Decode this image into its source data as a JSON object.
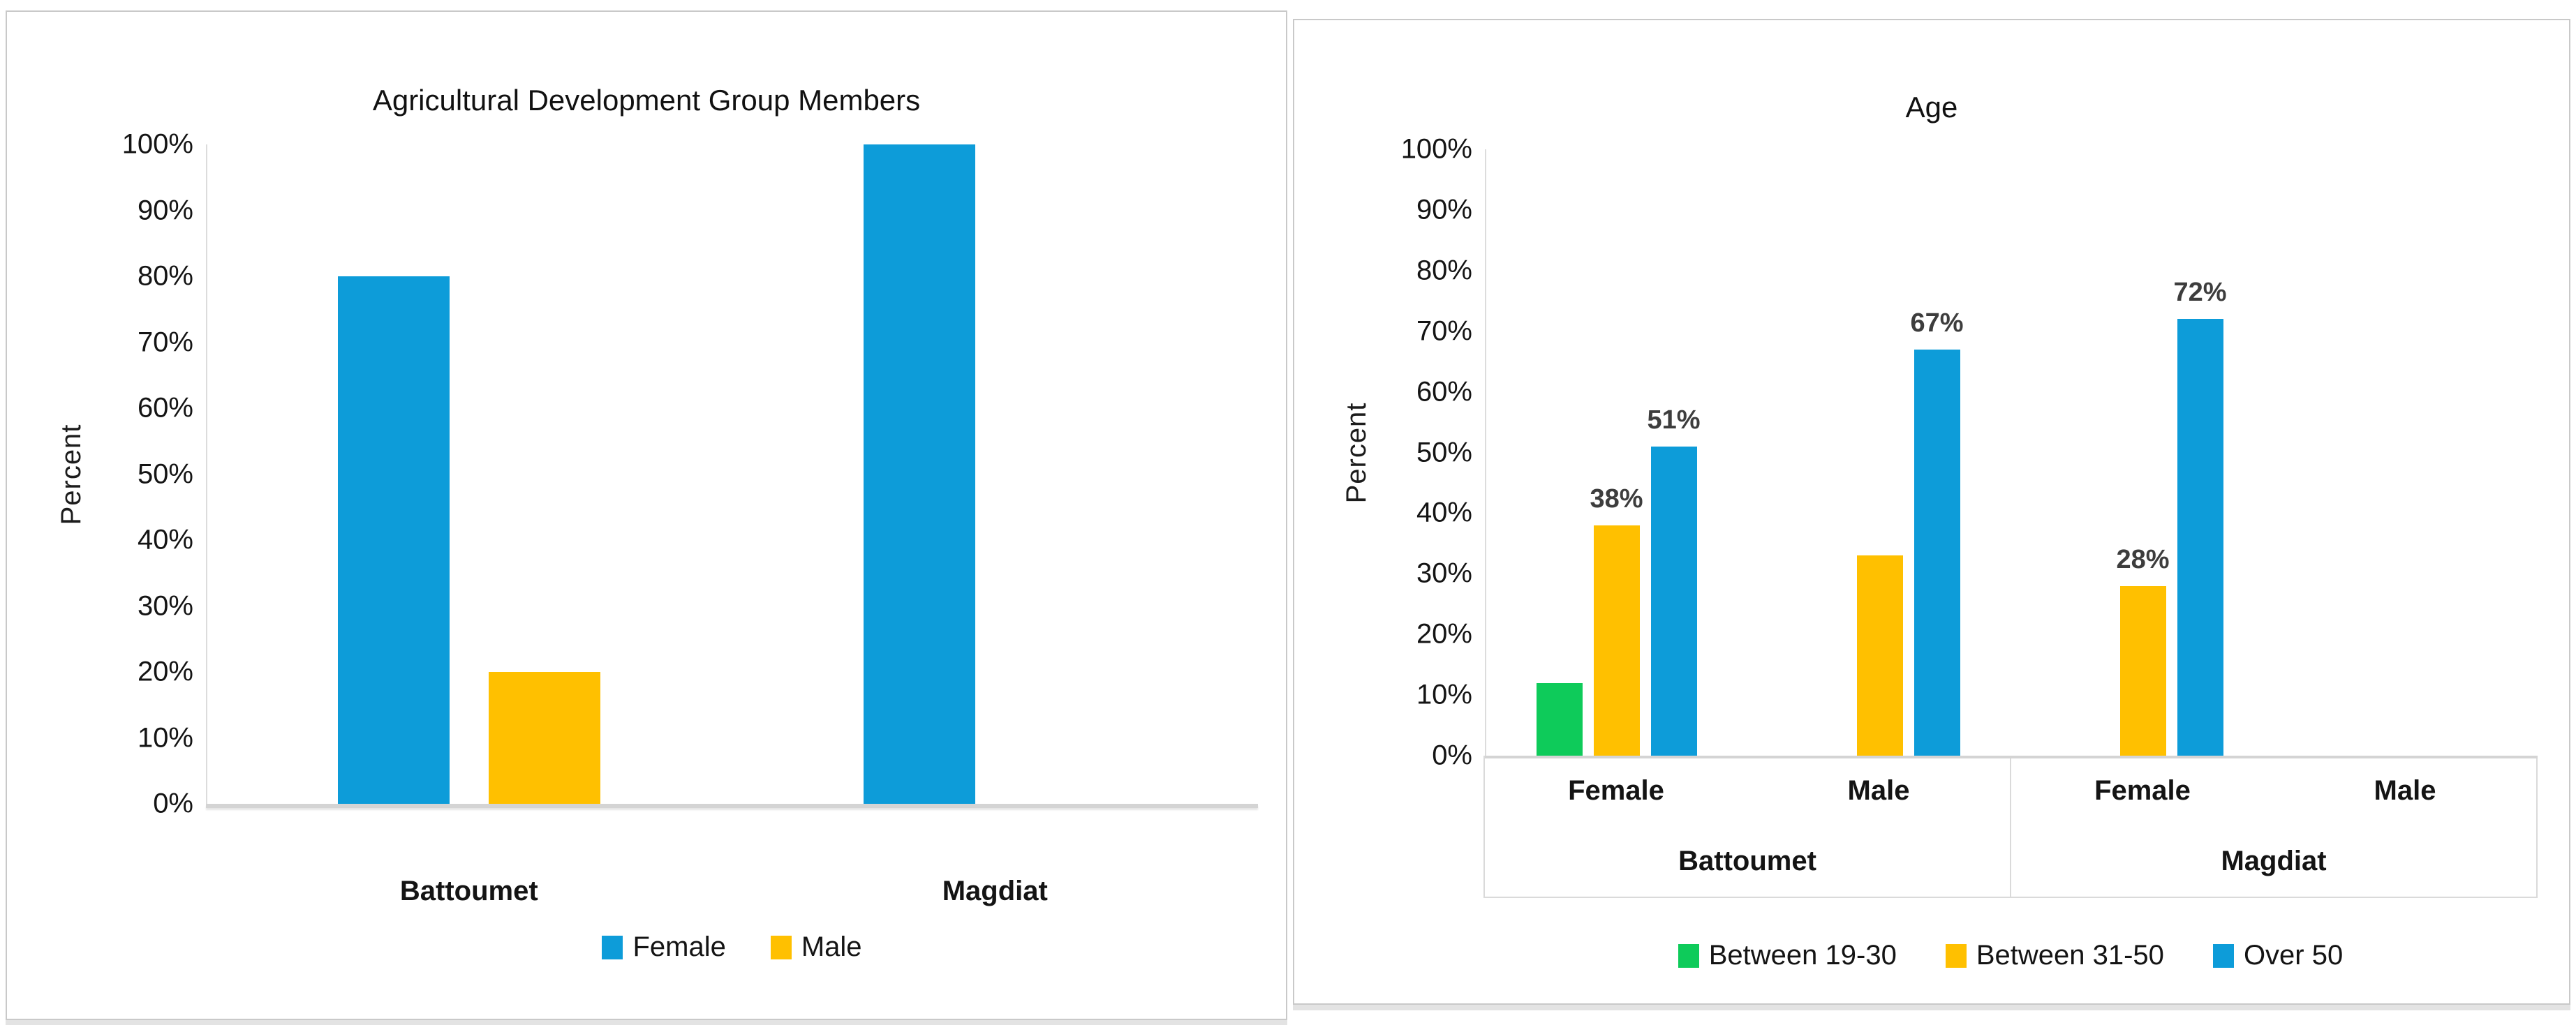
{
  "page": {
    "background": "#FFFFFF"
  },
  "chart_data": [
    {
      "type": "bar",
      "title": "Agricultural Development Group Members",
      "ylabel": "Percent",
      "xlabel": "",
      "ylim": [
        0,
        100
      ],
      "grid": false,
      "legend_position": "bottom",
      "y_ticks": [
        "100%",
        "90%",
        "80%",
        "70%",
        "60%",
        "50%",
        "40%",
        "30%",
        "20%",
        "10%",
        "0%"
      ],
      "categories": [
        "Battoumet",
        "Magdiat"
      ],
      "series": [
        {
          "name": "Female",
          "color": "#0D9CD9",
          "values": [
            80,
            100
          ],
          "labels": [
            "",
            ""
          ]
        },
        {
          "name": "Male",
          "color": "#FFC000",
          "values": [
            20,
            0
          ],
          "labels": [
            "",
            ""
          ]
        }
      ],
      "legend": [
        {
          "label": "Female",
          "color": "#0D9CD9"
        },
        {
          "label": "Male",
          "color": "#FFC000"
        }
      ]
    },
    {
      "type": "bar",
      "title": "Age",
      "ylabel": "Percent",
      "xlabel": "",
      "ylim": [
        0,
        100
      ],
      "grid": false,
      "legend_position": "bottom",
      "y_ticks": [
        "100%",
        "90%",
        "80%",
        "70%",
        "60%",
        "50%",
        "40%",
        "30%",
        "20%",
        "10%",
        "0%"
      ],
      "group_labels": [
        "Battoumet",
        "Magdiat"
      ],
      "sub_labels": [
        "Female",
        "Male",
        "Female",
        "Male"
      ],
      "series": [
        {
          "name": "Between 19-30",
          "color": "#0ECB5A",
          "values": [
            12,
            0,
            0,
            0
          ],
          "labels": [
            "",
            "",
            "",
            ""
          ]
        },
        {
          "name": "Between 31-50",
          "color": "#FFC000",
          "values": [
            38,
            33,
            28,
            0
          ],
          "labels": [
            "38%",
            "",
            "28%",
            ""
          ]
        },
        {
          "name": "Over 50",
          "color": "#0D9CD9",
          "values": [
            51,
            67,
            72,
            0
          ],
          "labels": [
            "51%",
            "67%",
            "72%",
            ""
          ]
        }
      ],
      "legend": [
        {
          "label": "Between 19-30",
          "color": "#0ECB5A"
        },
        {
          "label": "Between 31-50",
          "color": "#FFC000"
        },
        {
          "label": "Over 50",
          "color": "#0D9CD9"
        }
      ]
    }
  ]
}
